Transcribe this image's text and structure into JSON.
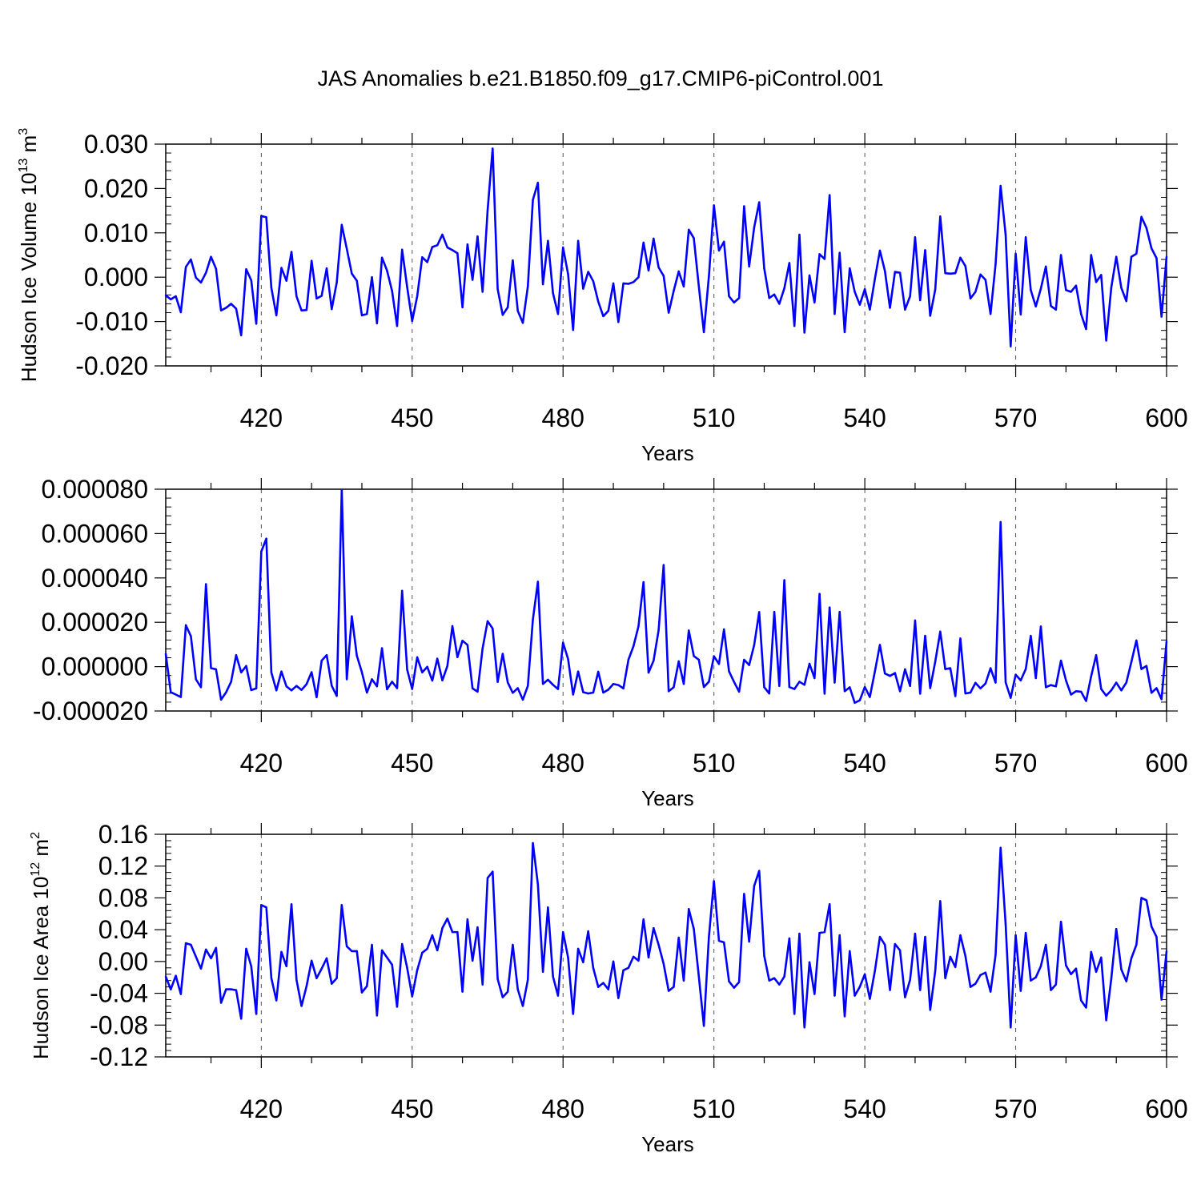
{
  "figure": {
    "title": "JAS Anomalies b.e21.B1850.f09_g17.CMIP6-piControl.001"
  },
  "colors": {
    "series": "#0000ff",
    "axis": "#000000",
    "grid": "#555555"
  },
  "chart_data": [
    {
      "type": "line",
      "xlabel": "Years",
      "ylabel": {
        "text": "Hudson Ice Volume 10",
        "sup": "13",
        "unit": " m",
        "unit_sup": "3"
      },
      "xlim": [
        401,
        600
      ],
      "ylim": [
        -0.02,
        0.03
      ],
      "xticks": [
        420,
        450,
        480,
        510,
        540,
        570,
        600
      ],
      "yticks": [
        -0.02,
        -0.01,
        0.0,
        0.01,
        0.02,
        0.03
      ],
      "ytick_labels": [
        "-0.020",
        "-0.010",
        "0.000",
        "0.010",
        "0.020",
        "0.030"
      ],
      "grid": "vertical dashed",
      "x_start": 401,
      "series": [
        {
          "values": [
            -0.0041,
            -0.005,
            -0.0043,
            -0.0079,
            0.0023,
            0.004,
            -0.0001,
            -0.0012,
            0.001,
            0.0046,
            0.0019,
            -0.0075,
            -0.0069,
            -0.006,
            -0.0071,
            -0.0131,
            0.0018,
            -0.0007,
            -0.0105,
            0.0138,
            0.0135,
            -0.0024,
            -0.0086,
            0.0021,
            -0.0008,
            0.0057,
            -0.0043,
            -0.0075,
            -0.0074,
            0.0037,
            -0.0048,
            -0.0042,
            0.002,
            -0.0072,
            -0.0012,
            0.0118,
            0.0064,
            0.0008,
            -0.0008,
            -0.0086,
            -0.0083,
            0.0,
            -0.0104,
            0.0044,
            0.0015,
            -0.0031,
            -0.011,
            0.0062,
            -0.0022,
            -0.0099,
            -0.0043,
            0.0045,
            0.0034,
            0.0068,
            0.0072,
            0.0096,
            0.0067,
            0.0061,
            0.0054,
            -0.0068,
            0.0074,
            -0.0006,
            0.0092,
            -0.0033,
            0.0151,
            0.029,
            -0.0027,
            -0.0085,
            -0.0068,
            0.0038,
            -0.0076,
            -0.0103,
            -0.0021,
            0.0174,
            0.0213,
            -0.0016,
            0.0082,
            -0.0036,
            -0.0083,
            0.0067,
            0.0007,
            -0.0119,
            0.0082,
            -0.0026,
            0.0012,
            -0.0009,
            -0.0055,
            -0.0088,
            -0.0076,
            -0.0014,
            -0.0101,
            -0.0014,
            -0.0015,
            -0.0011,
            0.0,
            0.0078,
            0.0015,
            0.0087,
            0.0022,
            0.0003,
            -0.008,
            -0.0031,
            0.0013,
            -0.0021,
            0.0107,
            0.0088,
            -0.0021,
            -0.0124,
            0.0002,
            0.0162,
            0.006,
            0.008,
            -0.0043,
            -0.0057,
            -0.0047,
            0.016,
            0.0024,
            0.0112,
            0.0169,
            0.002,
            -0.0047,
            -0.0039,
            -0.006,
            -0.0025,
            0.0032,
            -0.011,
            0.0096,
            -0.0125,
            0.0004,
            -0.0057,
            0.0052,
            0.0041,
            0.0185,
            -0.0083,
            0.0055,
            -0.0124,
            0.002,
            -0.0033,
            -0.0062,
            -0.0027,
            -0.0073,
            -0.0004,
            0.006,
            0.0014,
            -0.0069,
            0.0012,
            0.001,
            -0.0073,
            -0.0043,
            0.009,
            -0.0052,
            0.0061,
            -0.0087,
            -0.0028,
            0.0137,
            0.0009,
            0.0008,
            0.0009,
            0.0044,
            0.0025,
            -0.0048,
            -0.0033,
            0.0006,
            -0.0006,
            -0.0083,
            0.0029,
            0.0206,
            0.0096,
            -0.0156,
            0.0053,
            -0.0084,
            0.009,
            -0.0029,
            -0.0066,
            -0.0026,
            0.0024,
            -0.0065,
            -0.0073,
            0.005,
            -0.0029,
            -0.0033,
            -0.0019,
            -0.0083,
            -0.0117,
            0.005,
            -0.0011,
            0.0005,
            -0.0143,
            -0.0024,
            0.0046,
            -0.0024,
            -0.0054,
            0.0046,
            0.0053,
            0.0136,
            0.0111,
            0.0065,
            0.0043,
            -0.0089,
            0.0046
          ]
        }
      ]
    },
    {
      "type": "line",
      "xlabel": "Years",
      "ylabel": {
        "text": ""
      },
      "xlim": [
        401,
        600
      ],
      "ylim": [
        -2e-05,
        8e-05
      ],
      "xticks": [
        420,
        450,
        480,
        510,
        540,
        570,
        600
      ],
      "yticks": [
        -2e-05,
        0.0,
        2e-05,
        4e-05,
        6e-05,
        8e-05
      ],
      "ytick_labels": [
        "-0.000020",
        "0.000000",
        "0.000020",
        "0.000040",
        "0.000060",
        "0.000080"
      ],
      "grid": "vertical dashed",
      "x_start": 401,
      "series": [
        {
          "values": [
            5.8e-06,
            -1.15e-05,
            -1.26e-05,
            -1.37e-05,
            1.87e-05,
            1.37e-05,
            -5.7e-06,
            -9.3e-06,
            3.72e-05,
            -7e-07,
            -1.2e-06,
            -1.49e-05,
            -1.16e-05,
            -6.8e-06,
            5.2e-06,
            -2.6e-06,
            3e-07,
            -1.06e-05,
            -9.8e-06,
            5.19e-05,
            5.77e-05,
            -2.6e-06,
            -1.07e-05,
            -2.2e-06,
            -8.9e-06,
            -1.07e-05,
            -8.7e-06,
            -1.05e-05,
            -7.9e-06,
            -2.5e-06,
            -1.38e-05,
            2.7e-06,
            5.2e-06,
            -8.6e-06,
            -1.32e-05,
            7.97e-05,
            -5.7e-06,
            2.27e-05,
            4.9e-06,
            -2.5e-06,
            -1.17e-05,
            -5.7e-06,
            -8.9e-06,
            8.3e-06,
            -1.02e-05,
            -6.8e-06,
            -9.7e-06,
            3.42e-05,
            -1.3e-06,
            -1.01e-05,
            4.2e-06,
            -2.6e-06,
            -1e-07,
            -6.3e-06,
            3.6e-06,
            -6.2e-06,
            3e-07,
            1.83e-05,
            4.3e-06,
            1.17e-05,
            9.8e-06,
            -9.8e-06,
            -1.13e-05,
            8.2e-06,
            2.05e-05,
            1.72e-05,
            -6.9e-06,
            5.8e-06,
            -7.1e-06,
            -1.18e-05,
            -9.7e-06,
            -1.49e-05,
            -8.7e-06,
            2.12e-05,
            3.83e-05,
            -7.8e-06,
            -5.9e-06,
            -8.2e-06,
            -1.01e-05,
            1.08e-05,
            3.4e-06,
            -1.26e-05,
            -2.2e-06,
            -1.15e-05,
            -1.21e-05,
            -1.17e-05,
            -2.3e-06,
            -1.17e-05,
            -1.04e-05,
            -7.8e-06,
            -8.3e-06,
            -9.8e-06,
            3.1e-06,
            9.2e-06,
            1.82e-05,
            3.81e-05,
            -2.7e-06,
            2.7e-06,
            1.64e-05,
            4.58e-05,
            -1.11e-05,
            -9.3e-06,
            2.4e-06,
            -7.8e-06,
            1.63e-05,
            4.8e-06,
            3.1e-06,
            -9.2e-06,
            -6.8e-06,
            4.7e-06,
            1.2e-06,
            1.68e-05,
            -2.1e-06,
            -6.9e-06,
            -1.13e-05,
            3.1e-06,
            7e-07,
            9.7e-06,
            2.46e-05,
            -9.3e-06,
            -1.21e-05,
            2.47e-05,
            -8.7e-06,
            3.9e-05,
            -9.2e-06,
            -1.01e-05,
            -6.8e-06,
            -8.2e-06,
            1.3e-06,
            -5.2e-06,
            3.28e-05,
            -1.22e-05,
            2.67e-05,
            -7.2e-06,
            2.47e-05,
            -1.11e-05,
            -9.3e-06,
            -1.63e-05,
            -1.52e-05,
            -9.2e-06,
            -1.37e-05,
            -2.2e-06,
            9.8e-06,
            -3.1e-06,
            -4.2e-06,
            -2.9e-06,
            -1.11e-05,
            -1.2e-06,
            -8.7e-06,
            2.08e-05,
            -1.22e-05,
            1.39e-05,
            -9.7e-06,
            2.2e-06,
            1.58e-05,
            -1.1e-06,
            -7e-07,
            -1.33e-05,
            1.27e-05,
            -1.21e-05,
            -1.17e-05,
            -7.3e-06,
            -9.8e-06,
            -7.6e-06,
            -7e-07,
            -7.2e-06,
            6.52e-05,
            -7.1e-06,
            -1.41e-05,
            -3.6e-06,
            -6.2e-06,
            -1.1e-06,
            1.39e-05,
            -5.2e-06,
            1.81e-05,
            -9.3e-06,
            -8.3e-06,
            -8.9e-06,
            2.7e-06,
            -6.2e-06,
            -1.26e-05,
            -1.11e-05,
            -1.13e-05,
            -1.55e-05,
            -4.4e-06,
            5.2e-06,
            -1.01e-05,
            -1.31e-05,
            -1.07e-05,
            -7.2e-06,
            -1.07e-05,
            -7.2e-06,
            2.1e-06,
            1.18e-05,
            -1.1e-06,
            3e-07,
            -1.18e-05,
            -9.7e-06,
            -1.47e-05,
            1.14e-05
          ]
        }
      ]
    },
    {
      "type": "line",
      "xlabel": "Years",
      "ylabel": {
        "text": "Hudson Ice Area 10",
        "sup": "12",
        "unit": " m",
        "unit_sup": "2"
      },
      "xlim": [
        401,
        600
      ],
      "ylim": [
        -0.12,
        0.16
      ],
      "xticks": [
        420,
        450,
        480,
        510,
        540,
        570,
        600
      ],
      "yticks": [
        -0.12,
        -0.08,
        -0.04,
        0.0,
        0.04,
        0.08,
        0.12,
        0.16
      ],
      "ytick_labels": [
        "-0.12",
        "-0.08",
        "-0.04",
        "0.00",
        "0.04",
        "0.08",
        "0.12",
        "0.16"
      ],
      "grid": "vertical dashed",
      "x_start": 401,
      "series": [
        {
          "values": [
            -0.019,
            -0.035,
            -0.018,
            -0.041,
            0.023,
            0.021,
            0.006,
            -0.009,
            0.015,
            0.004,
            0.017,
            -0.052,
            -0.035,
            -0.035,
            -0.036,
            -0.072,
            0.016,
            -0.006,
            -0.066,
            0.071,
            0.068,
            -0.021,
            -0.049,
            0.012,
            -0.006,
            0.072,
            -0.023,
            -0.056,
            -0.031,
            0.001,
            -0.021,
            -0.009,
            0.004,
            -0.028,
            -0.021,
            0.071,
            0.019,
            0.013,
            0.013,
            -0.039,
            -0.031,
            0.021,
            -0.068,
            0.014,
            0.005,
            -0.004,
            -0.057,
            0.022,
            -0.008,
            -0.044,
            -0.011,
            0.011,
            0.016,
            0.033,
            0.014,
            0.042,
            0.054,
            0.037,
            0.037,
            -0.038,
            0.053,
            0.001,
            0.043,
            -0.029,
            0.105,
            0.113,
            -0.022,
            -0.045,
            -0.038,
            0.021,
            -0.035,
            -0.056,
            -0.023,
            0.149,
            0.097,
            -0.013,
            0.068,
            -0.019,
            -0.043,
            0.037,
            0.005,
            -0.066,
            0.016,
            -0.001,
            0.038,
            -0.008,
            -0.032,
            -0.027,
            -0.035,
            0.0,
            -0.046,
            -0.011,
            -0.008,
            0.006,
            0.001,
            0.053,
            0.005,
            0.042,
            0.021,
            -0.003,
            -0.037,
            -0.032,
            0.03,
            -0.024,
            0.066,
            0.041,
            -0.019,
            -0.081,
            0.031,
            0.101,
            0.026,
            0.024,
            -0.025,
            -0.033,
            -0.026,
            0.085,
            0.025,
            0.095,
            0.114,
            0.007,
            -0.024,
            -0.021,
            -0.029,
            -0.019,
            0.029,
            -0.066,
            0.035,
            -0.083,
            -0.001,
            -0.041,
            0.036,
            0.037,
            0.072,
            -0.043,
            0.033,
            -0.069,
            0.013,
            -0.043,
            -0.032,
            -0.016,
            -0.047,
            -0.012,
            0.031,
            0.021,
            -0.036,
            0.022,
            0.014,
            -0.045,
            -0.023,
            0.035,
            -0.036,
            0.031,
            -0.061,
            -0.012,
            0.076,
            -0.021,
            0.006,
            -0.007,
            0.033,
            0.007,
            -0.032,
            -0.028,
            -0.017,
            -0.014,
            -0.038,
            0.008,
            0.143,
            0.047,
            -0.083,
            0.033,
            -0.037,
            0.036,
            -0.024,
            -0.02,
            -0.006,
            0.021,
            -0.036,
            -0.029,
            0.05,
            -0.005,
            -0.016,
            -0.009,
            -0.049,
            -0.058,
            0.012,
            -0.013,
            0.005,
            -0.074,
            -0.022,
            0.041,
            -0.01,
            -0.025,
            0.004,
            0.021,
            0.08,
            0.077,
            0.044,
            0.031,
            -0.048,
            0.013
          ]
        }
      ]
    }
  ]
}
